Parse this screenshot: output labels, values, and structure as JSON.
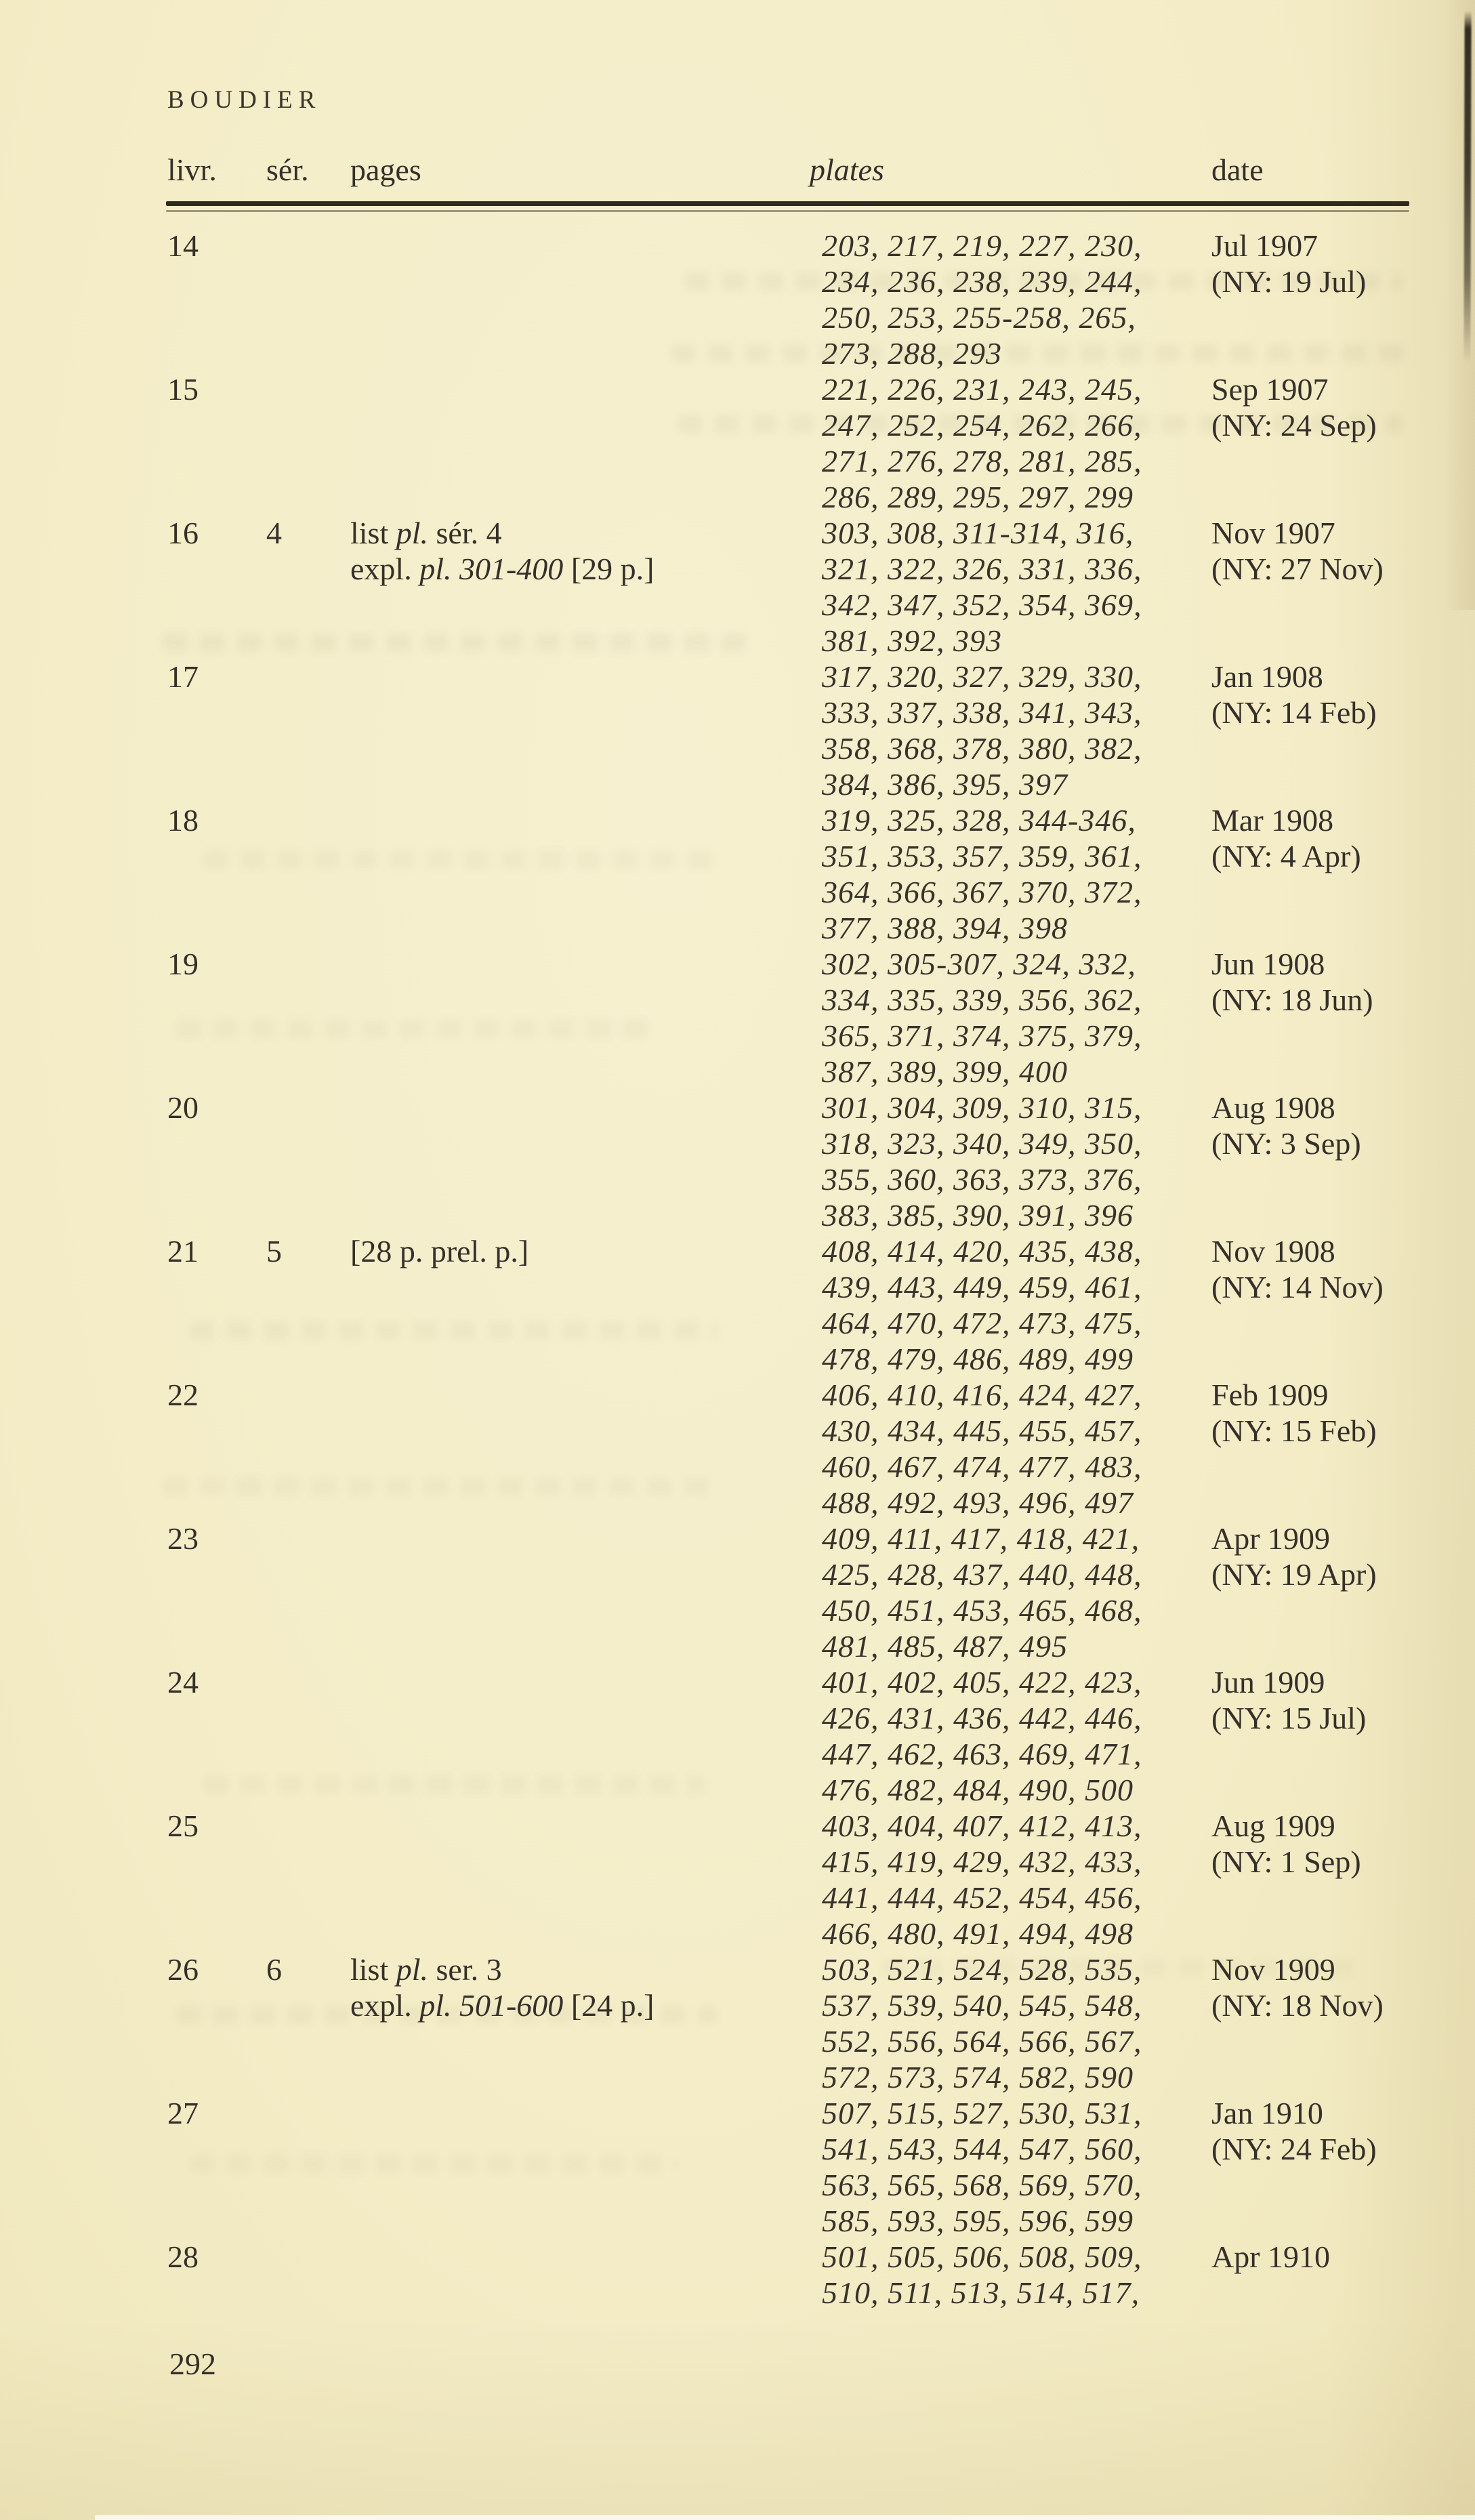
{
  "page": {
    "running_head": "BOUDIER",
    "page_number": "292"
  },
  "table": {
    "columns": [
      "livr.",
      "sér.",
      "pages",
      "plates",
      "date"
    ],
    "rows": [
      {
        "livr": "14",
        "ser": "",
        "pages": [],
        "plates": [
          "203, 217, 219, 227, 230,",
          "234, 236, 238, 239, 244,",
          "250, 253, 255-258, 265,",
          "273, 288, 293"
        ],
        "date": [
          "Jul 1907",
          "(NY: 19 Jul)"
        ]
      },
      {
        "livr": "15",
        "ser": "",
        "pages": [],
        "plates": [
          "221, 226, 231, 243, 245,",
          "247, 252, 254, 262, 266,",
          "271, 276, 278, 281, 285,",
          "286, 289, 295, 297, 299"
        ],
        "date": [
          "Sep 1907",
          "(NY: 24 Sep)"
        ]
      },
      {
        "livr": "16",
        "ser": "4",
        "pages": [
          "list pl. sér. 4",
          "expl. pl. 301-400 [29 p.]"
        ],
        "plates": [
          "303, 308, 311-314, 316,",
          "321, 322, 326, 331, 336,",
          "342, 347, 352, 354, 369,",
          "381, 392, 393"
        ],
        "date": [
          "Nov 1907",
          "(NY: 27 Nov)"
        ]
      },
      {
        "livr": "17",
        "ser": "",
        "pages": [],
        "plates": [
          "317, 320, 327, 329, 330,",
          "333, 337, 338, 341, 343,",
          "358, 368, 378, 380, 382,",
          "384, 386, 395, 397"
        ],
        "date": [
          "Jan 1908",
          "(NY: 14 Feb)"
        ]
      },
      {
        "livr": "18",
        "ser": "",
        "pages": [],
        "plates": [
          "319, 325, 328, 344-346,",
          "351, 353, 357, 359, 361,",
          "364, 366, 367, 370, 372,",
          "377, 388, 394, 398"
        ],
        "date": [
          "Mar 1908",
          "(NY: 4 Apr)"
        ]
      },
      {
        "livr": "19",
        "ser": "",
        "pages": [],
        "plates": [
          "302, 305-307, 324, 332,",
          "334, 335, 339, 356, 362,",
          "365, 371, 374, 375, 379,",
          "387, 389, 399, 400"
        ],
        "date": [
          "Jun 1908",
          "(NY: 18 Jun)"
        ]
      },
      {
        "livr": "20",
        "ser": "",
        "pages": [],
        "plates": [
          "301, 304, 309, 310, 315,",
          "318, 323, 340, 349, 350,",
          "355, 360, 363, 373, 376,",
          "383, 385, 390, 391, 396"
        ],
        "date": [
          "Aug 1908",
          "(NY: 3 Sep)"
        ]
      },
      {
        "livr": "21",
        "ser": "5",
        "pages": [
          "[28 p. prel. p.]"
        ],
        "plates": [
          "408, 414, 420, 435, 438,",
          "439, 443, 449, 459, 461,",
          "464, 470, 472, 473, 475,",
          "478, 479, 486, 489, 499"
        ],
        "date": [
          "Nov 1908",
          "(NY: 14 Nov)"
        ]
      },
      {
        "livr": "22",
        "ser": "",
        "pages": [],
        "plates": [
          "406, 410, 416, 424, 427,",
          "430, 434, 445, 455, 457,",
          "460, 467, 474, 477, 483,",
          "488, 492, 493, 496, 497"
        ],
        "date": [
          "Feb 1909",
          "(NY: 15 Feb)"
        ]
      },
      {
        "livr": "23",
        "ser": "",
        "pages": [],
        "plates": [
          "409, 411, 417, 418, 421,",
          "425, 428, 437, 440, 448,",
          "450, 451, 453, 465, 468,",
          "481, 485, 487, 495"
        ],
        "date": [
          "Apr 1909",
          "(NY: 19 Apr)"
        ]
      },
      {
        "livr": "24",
        "ser": "",
        "pages": [],
        "plates": [
          "401, 402, 405, 422, 423,",
          "426, 431, 436, 442, 446,",
          "447, 462, 463, 469, 471,",
          "476, 482, 484, 490, 500"
        ],
        "date": [
          "Jun 1909",
          "(NY: 15 Jul)"
        ]
      },
      {
        "livr": "25",
        "ser": "",
        "pages": [],
        "plates": [
          "403, 404, 407, 412, 413,",
          "415, 419, 429, 432, 433,",
          "441, 444, 452, 454, 456,",
          "466, 480, 491, 494, 498"
        ],
        "date": [
          "Aug 1909",
          "(NY: 1 Sep)"
        ]
      },
      {
        "livr": "26",
        "ser": "6",
        "pages": [
          "list pl. ser. 3",
          "expl. pl. 501-600 [24 p.]"
        ],
        "plates": [
          "503, 521, 524, 528, 535,",
          "537, 539, 540, 545, 548,",
          "552, 556, 564, 566, 567,",
          "572, 573, 574, 582, 590"
        ],
        "date": [
          "Nov 1909",
          "(NY: 18 Nov)"
        ]
      },
      {
        "livr": "27",
        "ser": "",
        "pages": [],
        "plates": [
          "507, 515, 527, 530, 531,",
          "541, 543, 544, 547, 560,",
          "563, 565, 568, 569, 570,",
          "585, 593, 595, 596, 599"
        ],
        "date": [
          "Jan 1910",
          "(NY: 24 Feb)"
        ]
      },
      {
        "livr": "28",
        "ser": "",
        "pages": [],
        "plates": [
          "501, 505, 506, 508, 509,",
          "510, 511, 513, 514, 517,"
        ],
        "date": [
          "Apr 1910"
        ]
      }
    ]
  }
}
